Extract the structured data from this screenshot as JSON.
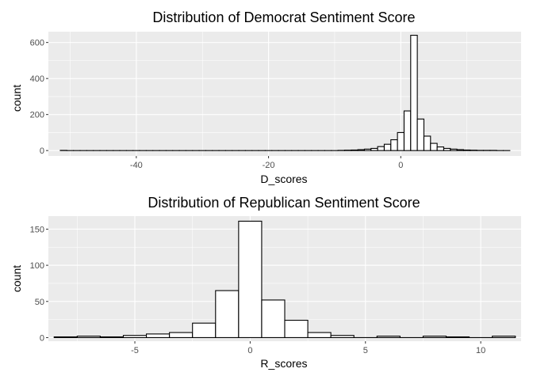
{
  "chart_data": [
    {
      "type": "bar",
      "title": "Distribution of Democrat Sentiment Score",
      "xlabel": "D_scores",
      "ylabel": "count",
      "xlim": [
        -53.3,
        18.2
      ],
      "ylim": [
        -30,
        660
      ],
      "grid": true,
      "x_ticks": [
        -40,
        -20,
        0
      ],
      "x_tick_labels": [
        "-40",
        "-20",
        "0"
      ],
      "y_ticks": [
        0,
        200,
        400,
        600
      ],
      "y_tick_labels": [
        "0",
        "200",
        "400",
        "600"
      ],
      "bin_width": 1,
      "bins_start": [
        -51.5,
        -50.5,
        -49.5,
        -48.5,
        -47.5,
        -46.5,
        -45.5,
        -44.5,
        -43.5,
        -42.5,
        -41.5,
        -40.5,
        -39.5,
        -38.5,
        -37.5,
        -36.5,
        -35.5,
        -34.5,
        -33.5,
        -32.5,
        -31.5,
        -30.5,
        -29.5,
        -28.5,
        -27.5,
        -26.5,
        -25.5,
        -24.5,
        -23.5,
        -22.5,
        -21.5,
        -20.5,
        -19.5,
        -18.5,
        -17.5,
        -16.5,
        -15.5,
        -14.5,
        -13.5,
        -12.5,
        -11.5,
        -10.5,
        -9.5,
        -8.5,
        -7.5,
        -6.5,
        -5.5,
        -4.5,
        -3.5,
        -2.5,
        -1.5,
        -0.5,
        0.5,
        1.5,
        2.5,
        3.5,
        4.5,
        5.5,
        6.5,
        7.5,
        8.5,
        9.5,
        10.5,
        11.5,
        12.5,
        13.5,
        14.5,
        15.5
      ],
      "values": [
        1,
        0,
        0,
        0,
        0,
        0,
        0,
        0,
        0,
        0,
        0,
        0,
        0,
        0,
        0,
        0,
        0,
        0,
        0,
        0,
        0,
        0,
        0,
        0,
        0,
        0,
        0,
        0,
        0,
        0,
        0,
        0,
        0,
        0,
        0,
        0,
        0,
        0,
        0,
        0,
        0,
        0,
        1,
        2,
        3,
        5,
        8,
        12,
        22,
        35,
        60,
        100,
        220,
        640,
        175,
        80,
        40,
        20,
        12,
        8,
        5,
        3,
        2,
        1,
        1,
        1,
        0,
        0
      ]
    },
    {
      "type": "bar",
      "title": "Distribution of Republican Sentiment Score",
      "xlabel": "R_scores",
      "ylabel": "count",
      "xlim": [
        -8.75,
        11.75
      ],
      "ylim": [
        -5,
        168
      ],
      "grid": true,
      "x_ticks": [
        -5,
        0,
        5,
        10
      ],
      "x_tick_labels": [
        "-5",
        "0",
        "5",
        "10"
      ],
      "y_ticks": [
        0,
        50,
        100,
        150
      ],
      "y_tick_labels": [
        "0",
        "50",
        "100",
        "150"
      ],
      "bin_width": 1,
      "bins_start": [
        -8.5,
        -7.5,
        -6.5,
        -5.5,
        -4.5,
        -3.5,
        -2.5,
        -1.5,
        -0.5,
        0.5,
        1.5,
        2.5,
        3.5,
        4.5,
        5.5,
        6.5,
        7.5,
        8.5,
        9.5,
        10.5
      ],
      "values": [
        1,
        2,
        1,
        3,
        5,
        7,
        20,
        65,
        161,
        52,
        24,
        7,
        3,
        0,
        2,
        0,
        2,
        1,
        0,
        2
      ]
    }
  ]
}
